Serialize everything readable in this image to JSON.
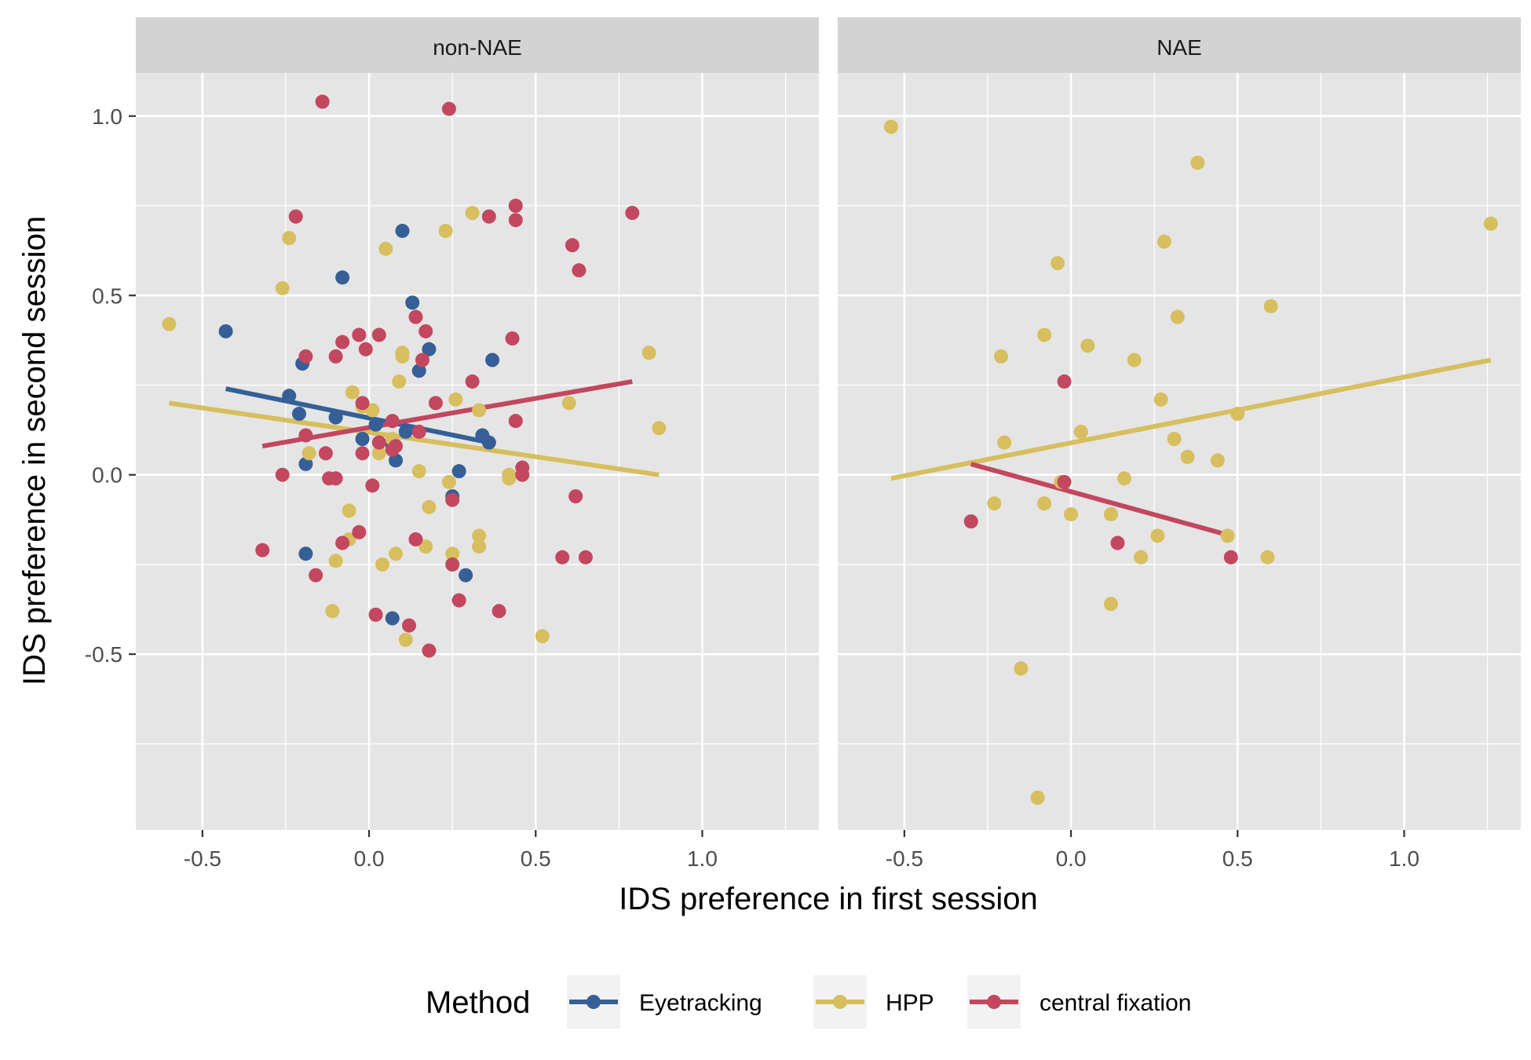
{
  "chart_data": {
    "type": "scatter",
    "xlabel": "IDS preference in first session",
    "ylabel": "IDS preference in second session",
    "xlim": [
      -0.7,
      1.35
    ],
    "ylim": [
      -0.99,
      1.12
    ],
    "x_ticks": [
      -0.5,
      0.0,
      0.5,
      1.0
    ],
    "x_tick_labels": [
      "-0.5",
      "0.0",
      "0.5",
      "1.0"
    ],
    "y_ticks": [
      -0.5,
      0.0,
      0.5,
      1.0
    ],
    "y_tick_labels": [
      "-0.5",
      "0.0",
      "0.5",
      "1.0"
    ],
    "grid": true,
    "legend": {
      "title": "Method",
      "position": "bottom",
      "entries": [
        "Eyetracking",
        "HPP",
        "central fixation"
      ]
    },
    "colors": {
      "Eyetracking": "#355F96",
      "HPP": "#D7BE5E",
      "central fixation": "#C2475F",
      "panel_background": "#E5E5E5",
      "strip_background": "#D3D3D3",
      "grid": "#FFFFFF"
    },
    "panels": [
      {
        "label": "non-NAE",
        "series": [
          {
            "name": "Eyetracking",
            "points": [
              [
                -0.43,
                0.4
              ],
              [
                -0.08,
                0.55
              ],
              [
                0.1,
                0.68
              ],
              [
                0.13,
                0.48
              ],
              [
                -0.24,
                0.22
              ],
              [
                -0.21,
                0.17
              ],
              [
                -0.2,
                0.31
              ],
              [
                -0.1,
                0.16
              ],
              [
                -0.19,
                0.03
              ],
              [
                -0.19,
                -0.22
              ],
              [
                -0.02,
                0.1
              ],
              [
                0.02,
                0.14
              ],
              [
                0.07,
                0.08
              ],
              [
                0.08,
                0.04
              ],
              [
                0.11,
                0.12
              ],
              [
                0.15,
                0.29
              ],
              [
                0.18,
                0.35
              ],
              [
                0.34,
                0.11
              ],
              [
                0.37,
                0.32
              ],
              [
                0.36,
                0.09
              ],
              [
                0.27,
                0.01
              ],
              [
                0.25,
                -0.06
              ],
              [
                0.29,
                -0.28
              ],
              [
                0.07,
                -0.4
              ]
            ],
            "trend": [
              [
                -0.43,
                0.24
              ],
              [
                0.36,
                0.09
              ]
            ]
          },
          {
            "name": "HPP",
            "points": [
              [
                -0.6,
                0.42
              ],
              [
                -0.26,
                0.52
              ],
              [
                -0.24,
                0.66
              ],
              [
                0.05,
                0.63
              ],
              [
                0.23,
                0.68
              ],
              [
                0.31,
                0.73
              ],
              [
                -0.18,
                0.06
              ],
              [
                -0.05,
                0.23
              ],
              [
                -0.02,
                0.19
              ],
              [
                0.01,
                0.18
              ],
              [
                0.03,
                0.06
              ],
              [
                0.07,
                0.1
              ],
              [
                0.09,
                0.26
              ],
              [
                0.1,
                0.33
              ],
              [
                0.1,
                0.34
              ],
              [
                0.15,
                0.01
              ],
              [
                0.26,
                0.21
              ],
              [
                0.33,
                0.18
              ],
              [
                0.24,
                -0.02
              ],
              [
                0.42,
                0.0
              ],
              [
                0.42,
                -0.01
              ],
              [
                0.6,
                0.2
              ],
              [
                0.84,
                0.34
              ],
              [
                0.87,
                0.13
              ],
              [
                -0.06,
                -0.1
              ],
              [
                -0.06,
                -0.18
              ],
              [
                -0.1,
                -0.24
              ],
              [
                -0.11,
                -0.38
              ],
              [
                0.04,
                -0.25
              ],
              [
                0.08,
                -0.22
              ],
              [
                0.17,
                -0.2
              ],
              [
                0.18,
                -0.09
              ],
              [
                0.25,
                -0.22
              ],
              [
                0.33,
                -0.17
              ],
              [
                0.33,
                -0.2
              ],
              [
                0.11,
                -0.46
              ],
              [
                0.52,
                -0.45
              ]
            ],
            "trend": [
              [
                -0.6,
                0.2
              ],
              [
                0.87,
                0.0
              ]
            ]
          },
          {
            "name": "central fixation",
            "points": [
              [
                -0.14,
                1.04
              ],
              [
                0.24,
                1.02
              ],
              [
                -0.22,
                0.72
              ],
              [
                0.36,
                0.72
              ],
              [
                0.44,
                0.75
              ],
              [
                0.44,
                0.71
              ],
              [
                0.61,
                0.64
              ],
              [
                0.63,
                0.57
              ],
              [
                0.79,
                0.73
              ],
              [
                -0.19,
                0.33
              ],
              [
                -0.1,
                0.33
              ],
              [
                -0.08,
                0.37
              ],
              [
                -0.03,
                0.39
              ],
              [
                -0.01,
                0.35
              ],
              [
                0.03,
                0.39
              ],
              [
                0.14,
                0.44
              ],
              [
                0.17,
                0.4
              ],
              [
                0.16,
                0.32
              ],
              [
                0.31,
                0.26
              ],
              [
                0.43,
                0.38
              ],
              [
                -0.02,
                0.2
              ],
              [
                0.07,
                0.15
              ],
              [
                0.08,
                0.08
              ],
              [
                0.15,
                0.12
              ],
              [
                0.2,
                0.2
              ],
              [
                0.44,
                0.15
              ],
              [
                -0.19,
                0.11
              ],
              [
                -0.13,
                0.06
              ],
              [
                -0.02,
                0.06
              ],
              [
                0.03,
                0.09
              ],
              [
                0.07,
                0.07
              ],
              [
                -0.26,
                0.0
              ],
              [
                -0.12,
                -0.01
              ],
              [
                -0.1,
                -0.01
              ],
              [
                0.01,
                -0.03
              ],
              [
                0.25,
                -0.07
              ],
              [
                0.46,
                0.02
              ],
              [
                0.46,
                0.0
              ],
              [
                -0.32,
                -0.21
              ],
              [
                -0.08,
                -0.19
              ],
              [
                -0.03,
                -0.16
              ],
              [
                0.14,
                -0.18
              ],
              [
                0.25,
                -0.25
              ],
              [
                0.62,
                -0.06
              ],
              [
                0.58,
                -0.23
              ],
              [
                0.65,
                -0.23
              ],
              [
                -0.16,
                -0.28
              ],
              [
                0.02,
                -0.39
              ],
              [
                0.12,
                -0.42
              ],
              [
                0.27,
                -0.35
              ],
              [
                0.39,
                -0.38
              ],
              [
                0.18,
                -0.49
              ]
            ],
            "trend": [
              [
                -0.32,
                0.08
              ],
              [
                0.79,
                0.26
              ]
            ]
          }
        ]
      },
      {
        "label": "NAE",
        "series": [
          {
            "name": "Eyetracking",
            "points": [],
            "trend": []
          },
          {
            "name": "HPP",
            "points": [
              [
                -0.54,
                0.97
              ],
              [
                0.38,
                0.87
              ],
              [
                0.28,
                0.65
              ],
              [
                1.26,
                0.7
              ],
              [
                -0.04,
                0.59
              ],
              [
                0.32,
                0.44
              ],
              [
                0.6,
                0.47
              ],
              [
                -0.08,
                0.39
              ],
              [
                0.05,
                0.36
              ],
              [
                -0.21,
                0.33
              ],
              [
                0.19,
                0.32
              ],
              [
                0.27,
                0.21
              ],
              [
                0.03,
                0.12
              ],
              [
                -0.2,
                0.09
              ],
              [
                0.31,
                0.1
              ],
              [
                0.5,
                0.17
              ],
              [
                0.35,
                0.05
              ],
              [
                0.44,
                0.04
              ],
              [
                -0.03,
                -0.02
              ],
              [
                0.16,
                -0.01
              ],
              [
                -0.23,
                -0.08
              ],
              [
                -0.08,
                -0.08
              ],
              [
                0.0,
                -0.11
              ],
              [
                0.12,
                -0.11
              ],
              [
                0.26,
                -0.17
              ],
              [
                0.47,
                -0.17
              ],
              [
                0.21,
                -0.23
              ],
              [
                0.59,
                -0.23
              ],
              [
                0.12,
                -0.36
              ],
              [
                -0.15,
                -0.54
              ],
              [
                -0.1,
                -0.9
              ]
            ],
            "trend": [
              [
                -0.54,
                -0.01
              ],
              [
                1.26,
                0.32
              ]
            ]
          },
          {
            "name": "central fixation",
            "points": [
              [
                -0.02,
                0.26
              ],
              [
                -0.02,
                -0.02
              ],
              [
                -0.3,
                -0.13
              ],
              [
                0.14,
                -0.19
              ],
              [
                0.48,
                -0.23
              ]
            ],
            "trend": [
              [
                -0.3,
                0.03
              ],
              [
                0.48,
                -0.17
              ]
            ]
          }
        ]
      }
    ]
  }
}
